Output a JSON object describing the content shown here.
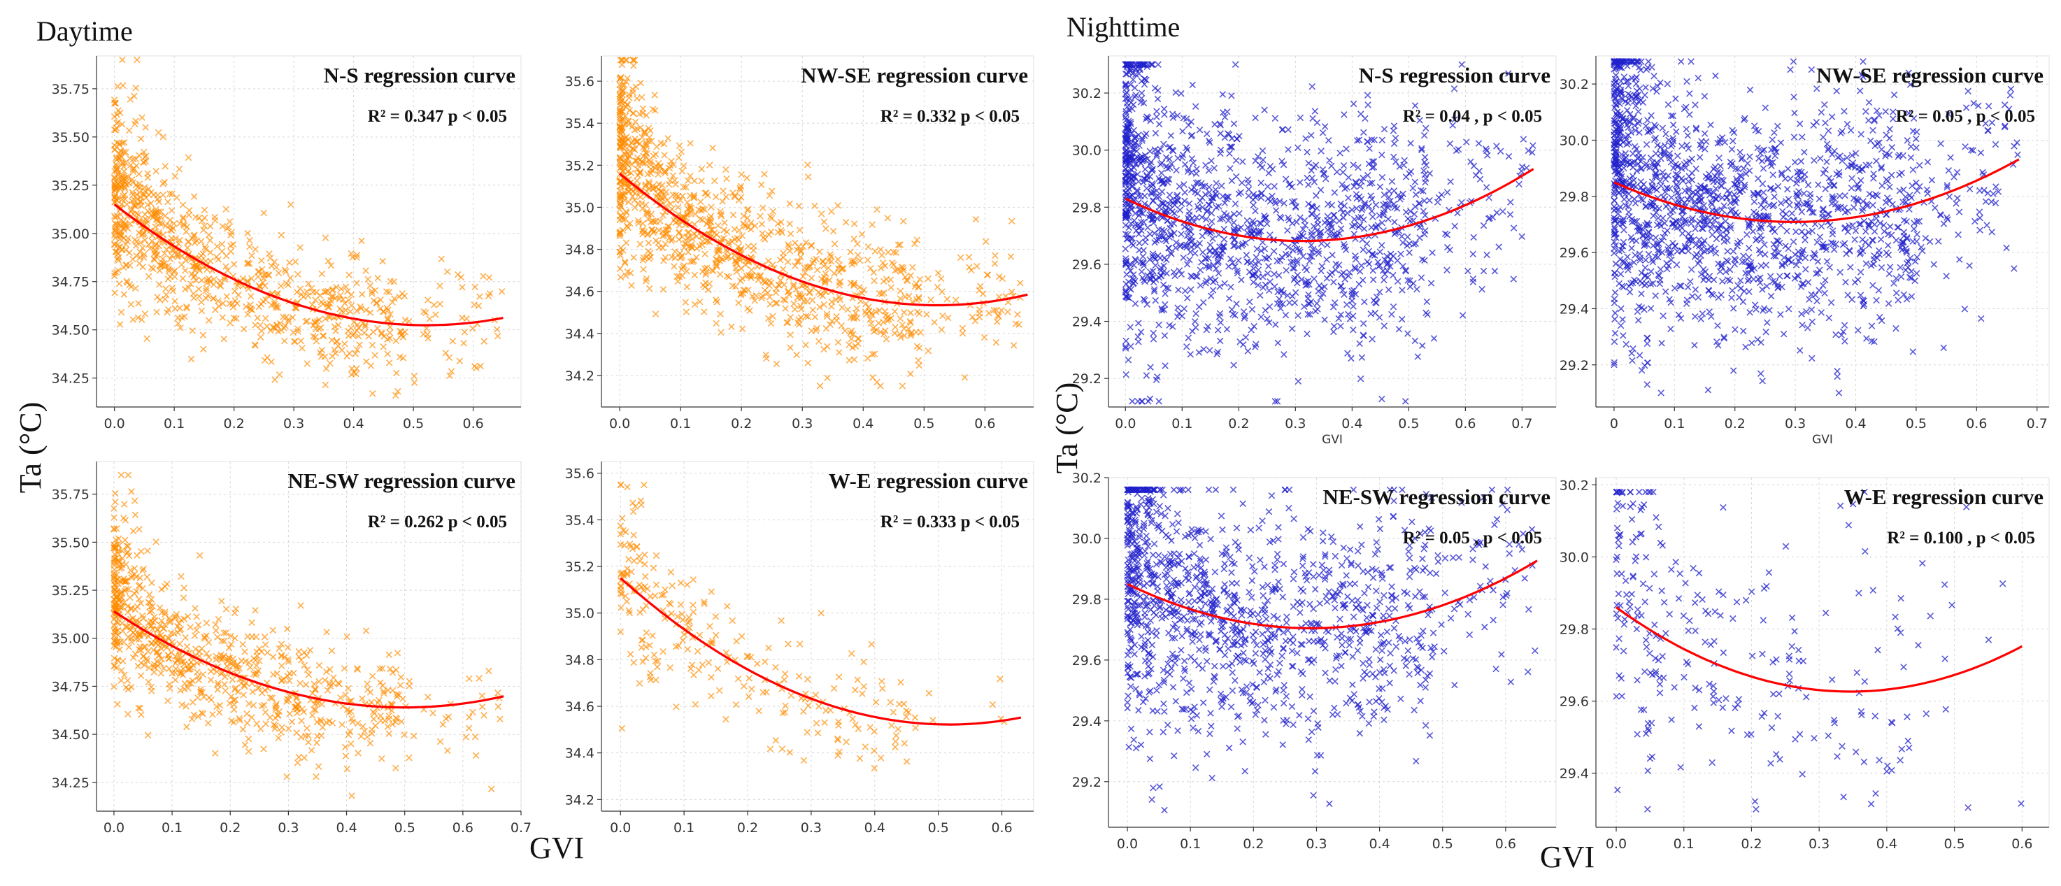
{
  "figure": {
    "day_label": "Daytime",
    "night_label": "Nighttime",
    "ylabel": "Ta (°C)",
    "xlabel": "GVI"
  },
  "colors": {
    "day": "#ff8c00",
    "night": "#2222cc",
    "curve": "#ff0000"
  },
  "chart_data": [
    {
      "id": "day-ns",
      "type": "scatter",
      "title": "N-S regression curve",
      "stat": "R² = 0.347 p < 0.05",
      "xlabel": "",
      "ylabel": "",
      "xlim": [
        -0.03,
        0.68
      ],
      "ylim": [
        34.1,
        35.92
      ],
      "xticks": [
        0.0,
        0.1,
        0.2,
        0.3,
        0.4,
        0.5,
        0.6
      ],
      "xtick_labels": [
        "0.0",
        "0.1",
        "0.2",
        "0.3",
        "0.4",
        "0.5",
        "0.6"
      ],
      "yticks": [
        34.25,
        34.5,
        34.75,
        35.0,
        35.25,
        35.5,
        35.75
      ],
      "ytick_labels": [
        "34.25",
        "34.50",
        "34.75",
        "35.00",
        "35.25",
        "35.50",
        "35.75"
      ],
      "curve": {
        "coefficients": [
          35.15,
          -2.4,
          2.3
        ],
        "x_range": [
          0.0,
          0.65
        ]
      },
      "scatter_params": {
        "n": 900,
        "seed": 11,
        "x_max": 0.65,
        "y_noise": 0.17,
        "y_floor": 34.16,
        "y_ceiling": 35.9
      }
    },
    {
      "id": "day-nwse",
      "type": "scatter",
      "title": "NW-SE regression curve",
      "stat": "R² = 0.332 p < 0.05",
      "xlabel": "",
      "ylabel": "",
      "xlim": [
        -0.03,
        0.68
      ],
      "ylim": [
        34.05,
        35.72
      ],
      "xticks": [
        0.0,
        0.1,
        0.2,
        0.3,
        0.4,
        0.5,
        0.6
      ],
      "xtick_labels": [
        "0.0",
        "0.1",
        "0.2",
        "0.3",
        "0.4",
        "0.5",
        "0.6"
      ],
      "yticks": [
        34.2,
        34.4,
        34.6,
        34.8,
        35.0,
        35.2,
        35.4,
        35.6
      ],
      "ytick_labels": [
        "34.2",
        "34.4",
        "34.6",
        "34.8",
        "35.0",
        "35.2",
        "35.4",
        "35.6"
      ],
      "curve": {
        "coefficients": [
          35.16,
          -2.4,
          2.3
        ],
        "x_range": [
          0.0,
          0.67
        ]
      },
      "scatter_params": {
        "n": 1100,
        "seed": 23,
        "x_max": 0.66,
        "y_noise": 0.17,
        "y_floor": 34.15,
        "y_ceiling": 35.7
      }
    },
    {
      "id": "day-nesw",
      "type": "scatter",
      "title": "NE-SW regression curve",
      "stat": "R² = 0.262 p < 0.05",
      "xlabel": "",
      "ylabel": "",
      "xlim": [
        -0.03,
        0.7
      ],
      "ylim": [
        34.1,
        35.92
      ],
      "xticks": [
        0.0,
        0.1,
        0.2,
        0.3,
        0.4,
        0.5,
        0.6,
        0.7
      ],
      "xtick_labels": [
        "0.0",
        "0.1",
        "0.2",
        "0.3",
        "0.4",
        "0.5",
        "0.6",
        "0.7"
      ],
      "yticks": [
        34.25,
        34.5,
        34.75,
        35.0,
        35.25,
        35.5,
        35.75
      ],
      "ytick_labels": [
        "34.25",
        "34.50",
        "34.75",
        "35.00",
        "35.25",
        "35.50",
        "35.75"
      ],
      "curve": {
        "coefficients": [
          35.14,
          -2.0,
          2.0
        ],
        "x_range": [
          0.0,
          0.67
        ]
      },
      "scatter_params": {
        "n": 800,
        "seed": 37,
        "x_max": 0.67,
        "y_noise": 0.16,
        "y_floor": 34.18,
        "y_ceiling": 35.85
      }
    },
    {
      "id": "day-we",
      "type": "scatter",
      "title": "W-E regression curve",
      "stat": "R² = 0.333 p < 0.05",
      "xlabel": "",
      "ylabel": "",
      "xlim": [
        -0.03,
        0.65
      ],
      "ylim": [
        34.15,
        35.65
      ],
      "xticks": [
        0.0,
        0.1,
        0.2,
        0.3,
        0.4,
        0.5,
        0.6
      ],
      "xtick_labels": [
        "0.0",
        "0.1",
        "0.2",
        "0.3",
        "0.4",
        "0.5",
        "0.6"
      ],
      "yticks": [
        34.2,
        34.4,
        34.6,
        34.8,
        35.0,
        35.2,
        35.4,
        35.6
      ],
      "ytick_labels": [
        "34.2",
        "34.4",
        "34.6",
        "34.8",
        "35.0",
        "35.2",
        "35.4",
        "35.6"
      ],
      "curve": {
        "coefficients": [
          35.15,
          -2.43,
          2.35
        ],
        "x_range": [
          0.0,
          0.63
        ]
      },
      "scatter_params": {
        "n": 260,
        "seed": 41,
        "x_max": 0.63,
        "y_noise": 0.15,
        "y_floor": 34.2,
        "y_ceiling": 35.55
      }
    },
    {
      "id": "night-ns",
      "type": "scatter",
      "title": "N-S regression curve",
      "stat": "R² = 0.04 , p < 0.05",
      "xlabel": "GVI",
      "ylabel": "",
      "xlim": [
        -0.03,
        0.76
      ],
      "ylim": [
        29.1,
        30.33
      ],
      "xticks": [
        0.0,
        0.1,
        0.2,
        0.3,
        0.4,
        0.5,
        0.6,
        0.7
      ],
      "xtick_labels": [
        "0.0",
        "0.1",
        "0.2",
        "0.3",
        "0.4",
        "0.5",
        "0.6",
        "0.7"
      ],
      "yticks": [
        29.2,
        29.4,
        29.6,
        29.8,
        30.0,
        30.2
      ],
      "ytick_labels": [
        "29.2",
        "29.4",
        "29.6",
        "29.8",
        "30.0",
        "30.2"
      ],
      "curve": {
        "coefficients": [
          29.83,
          -0.95,
          1.52
        ],
        "x_range": [
          0.0,
          0.72
        ]
      },
      "scatter_params": {
        "n": 1500,
        "seed": 53,
        "x_max": 0.72,
        "y_noise": 0.2,
        "y_floor": 29.12,
        "y_ceiling": 30.3
      }
    },
    {
      "id": "night-nwse",
      "type": "scatter",
      "title": "NW-SE regression curve",
      "stat": "R² = 0.05 , p < 0.05",
      "xlabel": "GVI",
      "ylabel": "",
      "xlim": [
        -0.03,
        0.72
      ],
      "ylim": [
        29.05,
        30.3
      ],
      "xticks": [
        0.0,
        0.1,
        0.2,
        0.3,
        0.4,
        0.5,
        0.6,
        0.7
      ],
      "xtick_labels": [
        "0",
        "0.1",
        "0.2",
        "0.3",
        "0.4",
        "0.5",
        "0.6",
        "0.7"
      ],
      "yticks": [
        29.2,
        29.4,
        29.6,
        29.8,
        30.0,
        30.2
      ],
      "ytick_labels": [
        "29.2",
        "29.4",
        "29.6",
        "29.8",
        "30.0",
        "30.2"
      ],
      "curve": {
        "coefficients": [
          29.85,
          -0.95,
          1.6
        ],
        "x_range": [
          0.0,
          0.67
        ]
      },
      "scatter_params": {
        "n": 1600,
        "seed": 67,
        "x_max": 0.67,
        "y_noise": 0.2,
        "y_floor": 29.1,
        "y_ceiling": 30.28
      }
    },
    {
      "id": "night-nesw",
      "type": "scatter",
      "title": "NE-SW regression curve",
      "stat": "R² = 0.05 , p < 0.05",
      "xlabel": "",
      "ylabel": "",
      "xlim": [
        -0.03,
        0.68
      ],
      "ylim": [
        29.05,
        30.2
      ],
      "xticks": [
        0.0,
        0.1,
        0.2,
        0.3,
        0.4,
        0.5,
        0.6
      ],
      "xtick_labels": [
        "0.0",
        "0.1",
        "0.2",
        "0.3",
        "0.4",
        "0.5",
        "0.6"
      ],
      "yticks": [
        29.2,
        29.4,
        29.6,
        29.8,
        30.0,
        30.2
      ],
      "ytick_labels": [
        "29.2",
        "29.4",
        "29.6",
        "29.8",
        "30.0",
        "30.2"
      ],
      "curve": {
        "coefficients": [
          29.85,
          -1.0,
          1.72
        ],
        "x_range": [
          0.0,
          0.65
        ]
      },
      "scatter_params": {
        "n": 1200,
        "seed": 79,
        "x_max": 0.65,
        "y_noise": 0.19,
        "y_floor": 29.08,
        "y_ceiling": 30.16
      }
    },
    {
      "id": "night-we",
      "type": "scatter",
      "title": "W-E regression curve",
      "stat": "R² = 0.100 , p < 0.05",
      "xlabel": "",
      "ylabel": "",
      "xlim": [
        -0.03,
        0.64
      ],
      "ylim": [
        29.25,
        30.22
      ],
      "xticks": [
        0.0,
        0.1,
        0.2,
        0.3,
        0.4,
        0.5,
        0.6
      ],
      "xtick_labels": [
        "0.0",
        "0.1",
        "0.2",
        "0.3",
        "0.4",
        "0.5",
        "0.6"
      ],
      "yticks": [
        29.4,
        29.6,
        29.8,
        30.0,
        30.2
      ],
      "ytick_labels": [
        "29.4",
        "29.6",
        "29.8",
        "30.0",
        "30.2"
      ],
      "curve": {
        "coefficients": [
          29.86,
          -1.35,
          1.95
        ],
        "x_range": [
          0.0,
          0.6
        ]
      },
      "scatter_params": {
        "n": 260,
        "seed": 97,
        "x_max": 0.6,
        "y_noise": 0.19,
        "y_floor": 29.3,
        "y_ceiling": 30.18
      }
    }
  ]
}
